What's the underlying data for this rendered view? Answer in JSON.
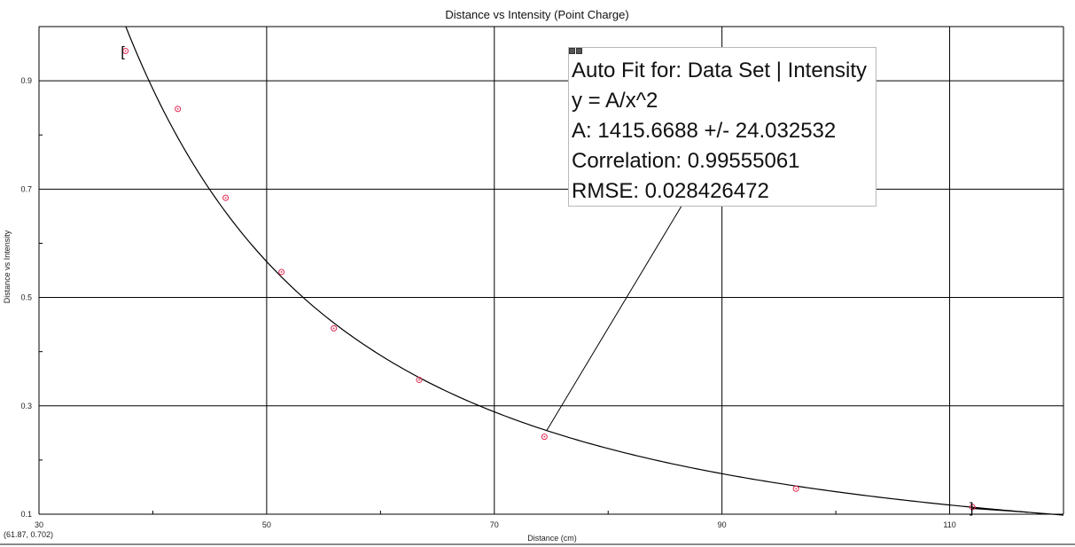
{
  "chart_data": {
    "type": "scatter",
    "title": "Distance vs Intensity (Point Charge)",
    "xlabel": "Distance (cm)",
    "ylabel": "Distance vs Intensity",
    "xlim": [
      30,
      120
    ],
    "ylim": [
      0.1,
      1.0
    ],
    "x_ticks": [
      30,
      50,
      70,
      90,
      110
    ],
    "y_ticks": [
      0.1,
      0.3,
      0.5,
      0.7,
      0.9
    ],
    "grid": true,
    "series": [
      {
        "points": [
          {
            "x": 37.6,
            "y": 0.955
          },
          {
            "x": 42.2,
            "y": 0.848
          },
          {
            "x": 46.4,
            "y": 0.684
          },
          {
            "x": 51.3,
            "y": 0.547
          },
          {
            "x": 55.9,
            "y": 0.443
          },
          {
            "x": 63.4,
            "y": 0.348
          },
          {
            "x": 74.4,
            "y": 0.243
          },
          {
            "x": 96.5,
            "y": 0.147
          },
          {
            "x": 112.0,
            "y": 0.113
          }
        ],
        "color": "#e0284f"
      }
    ],
    "fit": {
      "equation": "y = A/x^2",
      "A": 1415.6688,
      "x_range": [
        37.6,
        112.0
      ],
      "color": "#000000"
    },
    "range_brackets": {
      "left": "[",
      "right": "]",
      "color": "#000000"
    },
    "annotation": {
      "lines": [
        "Auto Fit for: Data Set | Intensity",
        "y = A/x^2",
        "A: 1415.6688 +/- 24.032532",
        "Correlation: 0.99555061",
        "RMSE: 0.028426472"
      ],
      "pointer_target_x": 74.6
    },
    "coordinate_readout": "(61.87, 0.702)"
  }
}
